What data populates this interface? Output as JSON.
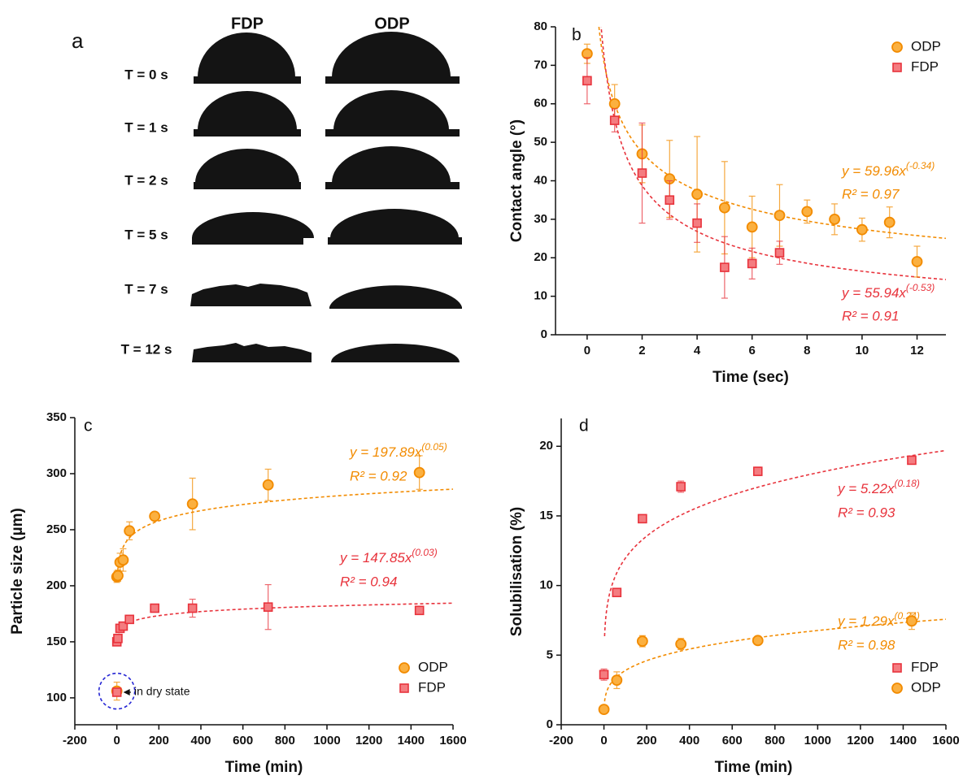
{
  "panel_a": {
    "label": "a",
    "columns": [
      "FDP",
      "ODP"
    ],
    "rows": [
      "T = 0 s",
      "T = 1 s",
      "T = 2 s",
      "T = 5 s",
      "T = 7 s",
      "T = 12 s"
    ]
  },
  "chart_data": [
    {
      "type": "scatter",
      "panel_label": "b",
      "xlabel": "Time (sec)",
      "ylabel": "Contact angle (°)",
      "xlim": [
        -1.15,
        13.05
      ],
      "ylim": [
        0,
        80
      ],
      "xticks": [
        0,
        2,
        4,
        6,
        8,
        10,
        12
      ],
      "yticks": [
        0,
        10,
        20,
        30,
        40,
        50,
        60,
        70,
        80
      ],
      "legend": "upper right",
      "series": [
        {
          "name": "ODP",
          "color": "#f28b00",
          "fill": "#fbb040",
          "marker": "circle",
          "x": [
            0,
            1,
            2,
            3,
            4,
            5,
            6,
            7,
            8,
            9,
            10,
            11,
            12
          ],
          "values": [
            73,
            60,
            47,
            40.5,
            36.5,
            33,
            28,
            31,
            32,
            30,
            27.3,
            29.2,
            19
          ],
          "errors": [
            2.5,
            5,
            7.5,
            10,
            15,
            12,
            8,
            8,
            3,
            4,
            3,
            4,
            4
          ],
          "fit": {
            "coef": 59.96,
            "exp": -0.34,
            "equation": "y = 59.96x",
            "exponent": "(-0.34)",
            "r2": "R² = 0.97"
          }
        },
        {
          "name": "FDP",
          "color": "#e8333c",
          "fill": "#f47c80",
          "marker": "square",
          "x": [
            0,
            1,
            2,
            3,
            4,
            5,
            6,
            7
          ],
          "values": [
            66,
            55.7,
            42,
            35,
            29,
            17.5,
            18.5,
            21.3
          ],
          "errors": [
            6,
            3,
            13,
            5,
            5,
            8,
            4,
            3
          ],
          "fit": {
            "coef": 55.94,
            "exp": -0.53,
            "equation": "y = 55.94x",
            "exponent": "(-0.53)",
            "r2": "R² = 0.91"
          }
        }
      ]
    },
    {
      "type": "scatter",
      "panel_label": "c",
      "xlabel": "Time (min)",
      "ylabel": "Particle size (µm)",
      "xlim": [
        -200,
        1600
      ],
      "ylim": [
        76,
        350
      ],
      "xticks": [
        -200,
        0,
        200,
        400,
        600,
        800,
        1000,
        1200,
        1400,
        1600
      ],
      "yticks": [
        100,
        150,
        200,
        250,
        300,
        350
      ],
      "legend": "lower right",
      "annotation": "in dry state",
      "series": [
        {
          "name": "ODP",
          "color": "#f28b00",
          "fill": "#fbb040",
          "marker": "circle",
          "x": [
            0,
            5,
            15,
            30,
            60,
            180,
            360,
            720,
            1440
          ],
          "values": [
            208,
            209,
            221,
            223,
            249,
            262,
            273,
            290,
            301
          ],
          "errors": [
            5,
            5,
            8,
            10,
            8,
            3,
            23,
            14,
            15
          ],
          "dry": {
            "x": 0,
            "value": 106,
            "error": 8
          },
          "fit": {
            "coef": 197.89,
            "exp": 0.05,
            "equation": "y = 197.89x",
            "exponent": "(0.05)",
            "r2": "R² = 0.92"
          }
        },
        {
          "name": "FDP",
          "color": "#e8333c",
          "fill": "#f47c80",
          "marker": "square",
          "x": [
            0,
            5,
            15,
            30,
            60,
            180,
            360,
            720,
            1440
          ],
          "values": [
            150,
            153,
            162,
            164,
            170,
            180,
            180,
            181,
            178
          ],
          "errors": [
            2,
            3,
            3,
            3,
            2,
            3,
            8,
            20,
            3
          ],
          "dry": {
            "x": 0,
            "value": 105,
            "error": 3
          },
          "fit": {
            "coef": 147.85,
            "exp": 0.03,
            "equation": "y = 147.85x",
            "exponent": "(0.03)",
            "r2": "R² = 0.94"
          }
        }
      ]
    },
    {
      "type": "scatter",
      "panel_label": "d",
      "xlabel": "Time (min)",
      "ylabel": "Solubilisation (%)",
      "xlim": [
        -200,
        1600
      ],
      "ylim": [
        0,
        22
      ],
      "xticks": [
        -200,
        0,
        200,
        400,
        600,
        800,
        1000,
        1200,
        1400,
        1600
      ],
      "yticks": [
        0,
        5,
        10,
        15,
        20
      ],
      "legend": "lower right",
      "series": [
        {
          "name": "FDP",
          "color": "#e8333c",
          "fill": "#f47c80",
          "marker": "square",
          "x": [
            0,
            60,
            180,
            360,
            720,
            1440
          ],
          "values": [
            3.6,
            9.5,
            14.8,
            17.1,
            18.2,
            19
          ],
          "errors": [
            0.4,
            0.1,
            0.1,
            0.4,
            0.3,
            0.1
          ],
          "fit": {
            "coef": 5.22,
            "exp": 0.18,
            "equation": "y = 5.22x",
            "exponent": "(0.18)",
            "r2": "R² = 0.93"
          }
        },
        {
          "name": "ODP",
          "color": "#f28b00",
          "fill": "#fbb040",
          "marker": "circle",
          "x": [
            0,
            60,
            180,
            360,
            720,
            1440
          ],
          "values": [
            1.1,
            3.2,
            6.0,
            5.8,
            6.05,
            7.45
          ],
          "errors": [
            0.1,
            0.6,
            0.4,
            0.4,
            0.1,
            0.6
          ],
          "fit": {
            "coef": 1.29,
            "exp": 0.24,
            "equation": "y = 1.29x",
            "exponent": "(0.24)",
            "r2": "R² = 0.98"
          }
        }
      ]
    }
  ]
}
